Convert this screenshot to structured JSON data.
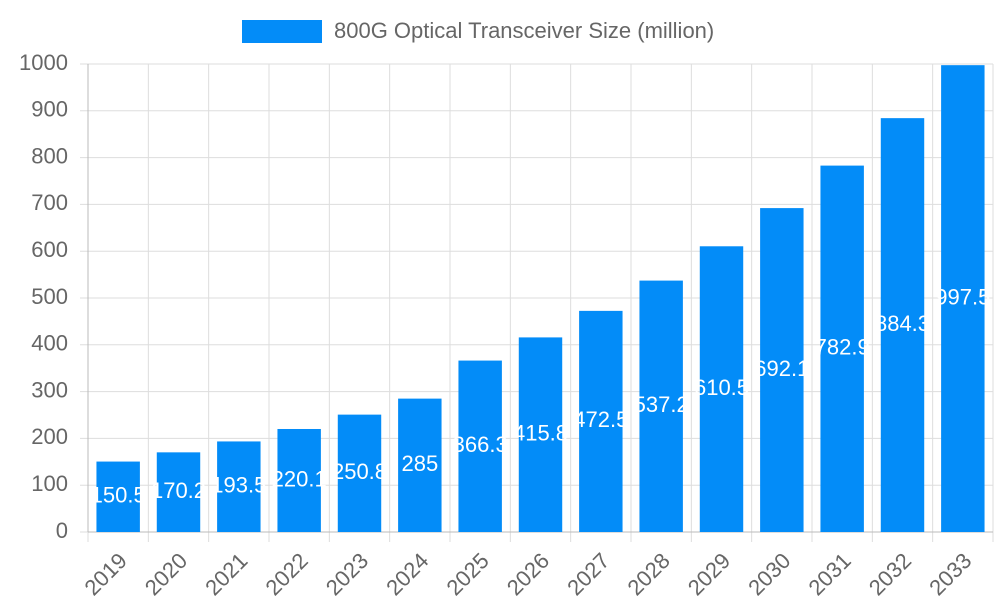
{
  "chart_data": {
    "type": "bar",
    "categories": [
      "2019",
      "2020",
      "2021",
      "2022",
      "2023",
      "2024",
      "2025",
      "2026",
      "2027",
      "2028",
      "2029",
      "2030",
      "2031",
      "2032",
      "2033"
    ],
    "series": [
      {
        "name": "800G Optical Transceiver Size (million)",
        "color": "#038cf8",
        "values": [
          150.5,
          170.2,
          193.5,
          220.1,
          250.8,
          285.0,
          366.3,
          415.8,
          472.5,
          537.2,
          610.5,
          692.1,
          782.9,
          884.3,
          997.5
        ]
      }
    ],
    "ylim": [
      0,
      1000
    ],
    "yticks": [
      0,
      100,
      200,
      300,
      400,
      500,
      600,
      700,
      800,
      900,
      1000
    ],
    "grid": true,
    "legend": "top"
  }
}
